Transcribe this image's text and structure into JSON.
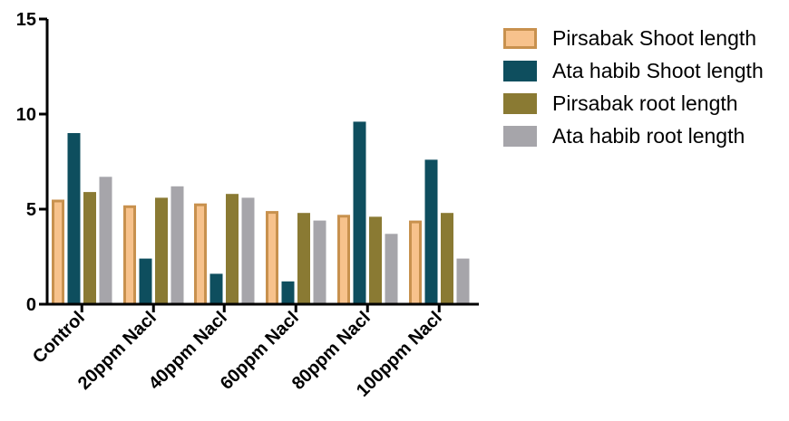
{
  "chart_data": {
    "type": "bar",
    "title": "",
    "xlabel": "",
    "ylabel": "",
    "ylim": [
      0,
      15
    ],
    "yticks": [
      0,
      5,
      10,
      15
    ],
    "grid": false,
    "legend_position": "right",
    "categories": [
      "Control",
      "20ppm Nacl",
      "40ppm Nacl",
      "60ppm Nacl",
      "80ppm Nacl",
      "100ppm Nacl"
    ],
    "series": [
      {
        "name": "Pirsabak Shoot length",
        "color": "#F7C28C",
        "stroke": "#C8914E",
        "values": [
          5.5,
          5.2,
          5.3,
          4.9,
          4.7,
          4.4
        ]
      },
      {
        "name": "Ata habib Shoot length",
        "color": "#0E4E5E",
        "stroke": "#0E4E5E",
        "values": [
          9.0,
          2.4,
          1.6,
          1.2,
          9.6,
          7.6
        ]
      },
      {
        "name": "Pirsabak root length",
        "color": "#8A7A33",
        "stroke": "#8A7A33",
        "values": [
          5.9,
          5.6,
          5.8,
          4.8,
          4.6,
          4.8
        ]
      },
      {
        "name": "Ata habib root length",
        "color": "#A6A5AA",
        "stroke": "#A6A5AA",
        "values": [
          6.7,
          6.2,
          5.6,
          4.4,
          3.7,
          2.4
        ]
      }
    ]
  }
}
